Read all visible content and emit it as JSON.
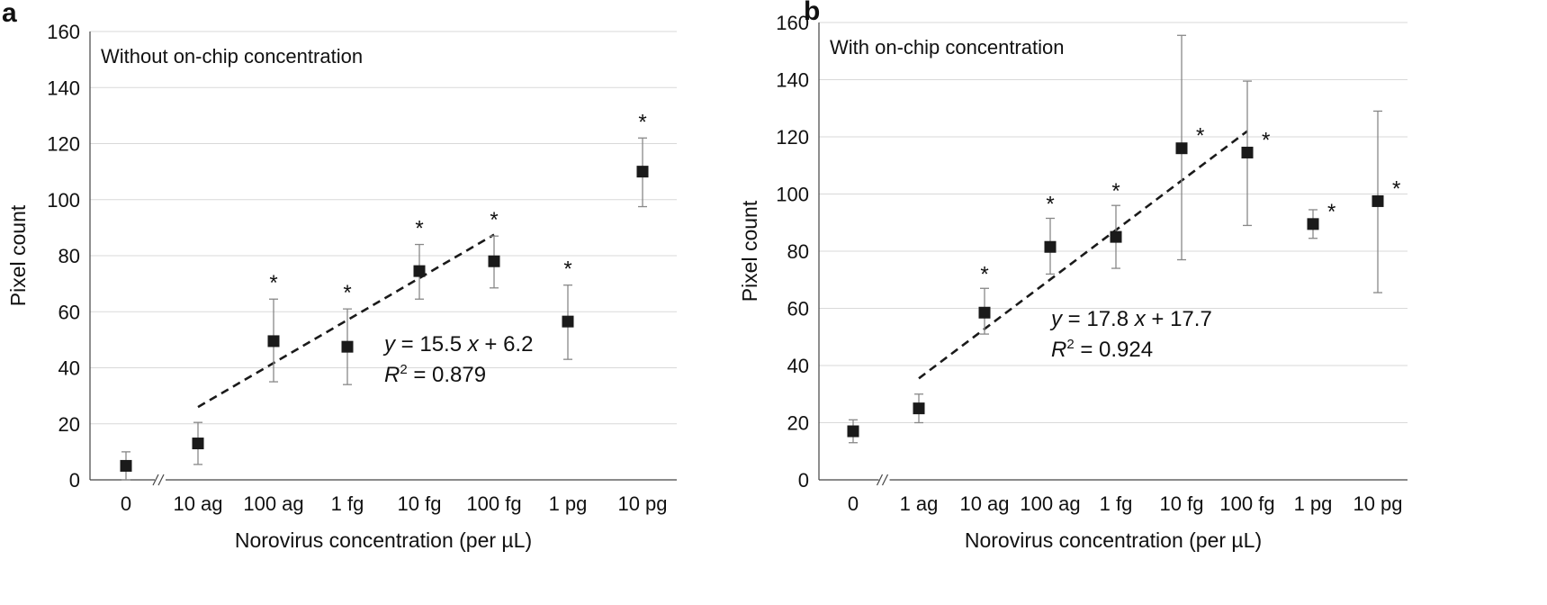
{
  "chart_data": [
    {
      "type": "scatter",
      "panel_label": "a",
      "inner_title": "Without on-chip concentration",
      "xlabel": "Norovirus concentration (per µL)",
      "ylabel": "Pixel count",
      "categories": [
        "0",
        "10 ag",
        "100 ag",
        "1 fg",
        "10 fg",
        "100 fg",
        "1 pg",
        "10 pg"
      ],
      "values": [
        5,
        13,
        49.5,
        47.5,
        74.5,
        78,
        56.5,
        110
      ],
      "error_low": [
        0,
        5.5,
        35,
        34,
        64.5,
        68.5,
        43,
        97.5
      ],
      "error_high": [
        10,
        20.5,
        64.5,
        61,
        84,
        87,
        69.5,
        122
      ],
      "significant": [
        false,
        false,
        true,
        true,
        true,
        true,
        true,
        true
      ],
      "ylim": [
        0,
        160
      ],
      "yticks": [
        0,
        20,
        40,
        60,
        80,
        100,
        120,
        140,
        160
      ],
      "axis_break": true,
      "trendline": {
        "from_category": "10 ag",
        "to_category": "100 fg",
        "y_start": 26,
        "y_end": 87.5,
        "style": "dashed"
      },
      "equation": {
        "prefix": "y",
        "body": " = 15.5 ",
        "var": "x",
        "tail": " + 6.2"
      },
      "r2": {
        "r": "R",
        "sup": "2",
        "value": " = 0.879"
      },
      "significance_marker": "*",
      "grid": true,
      "marker_color": "#1a1a1a",
      "error_color": "#888888",
      "grid_color": "#d9d9d9"
    },
    {
      "type": "scatter",
      "panel_label": "b",
      "inner_title": "With on-chip concentration",
      "xlabel": "Norovirus concentration (per µL)",
      "ylabel": "Pixel count",
      "categories": [
        "0",
        "1 ag",
        "10 ag",
        "100 ag",
        "1 fg",
        "10 fg",
        "100 fg",
        "1 pg",
        "10 pg"
      ],
      "values": [
        17,
        25,
        58.5,
        81.5,
        85,
        116,
        114.5,
        89.5,
        97.5
      ],
      "error_low": [
        13,
        20,
        51,
        72,
        74,
        77,
        89,
        84.5,
        65.5
      ],
      "error_high": [
        21,
        30,
        67,
        91.5,
        96,
        155.5,
        139.5,
        94.5,
        129
      ],
      "significant": [
        false,
        false,
        true,
        true,
        true,
        true,
        true,
        true,
        true
      ],
      "ylim": [
        0,
        160
      ],
      "yticks": [
        0,
        20,
        40,
        60,
        80,
        100,
        120,
        140,
        160
      ],
      "axis_break": true,
      "trendline": {
        "from_category": "1 ag",
        "to_category": "100 fg",
        "y_start": 35.5,
        "y_end": 122,
        "style": "dashed"
      },
      "equation": {
        "prefix": "y",
        "body": " = 17.8 ",
        "var": "x",
        "tail": " + 17.7"
      },
      "r2": {
        "r": "R",
        "sup": "2",
        "value": " = 0.924"
      },
      "significance_marker": "*",
      "grid": true,
      "marker_color": "#1a1a1a",
      "error_color": "#888888",
      "grid_color": "#d9d9d9"
    }
  ]
}
